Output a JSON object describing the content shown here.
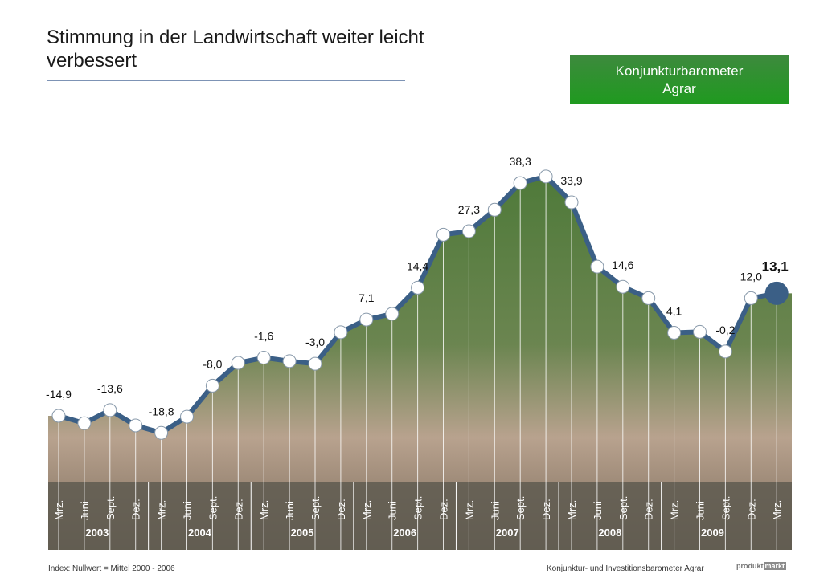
{
  "chart_data": {
    "type": "line",
    "title": "Stimmung in der Landwirtschaft weiter leicht verbessert",
    "badge": "Konjunkturbarometer Agrar",
    "footnote": "Index: Nullwert = Mittel 2000 - 2006",
    "source": "Konjunktur- und Investitionsbarometer Agrar",
    "logo": [
      "produkt",
      "markt"
    ],
    "categories": [
      "Mrz.",
      "Juni",
      "Sept.",
      "Dez.",
      "Mrz.",
      "Juni",
      "Sept.",
      "Dez.",
      "Mrz.",
      "Juni",
      "Sept.",
      "Dez.",
      "Mrz.",
      "Juni",
      "Sept.",
      "Dez.",
      "Mrz.",
      "Juni",
      "Sept.",
      "Dez.",
      "Mrz.",
      "Juni",
      "Sept.",
      "Dez.",
      "Mrz.",
      "Juni",
      "Sept.",
      "Dez.",
      "Mrz."
    ],
    "years": [
      "2003",
      "2004",
      "2005",
      "2006",
      "2007",
      "2008",
      "2009"
    ],
    "ylim": [
      -30,
      45
    ],
    "series": [
      {
        "name": "Konjunkturbarometer Agrar",
        "color": "#3b5f86",
        "values": [
          -14.9,
          -16.6,
          -13.6,
          -17.1,
          -18.8,
          -15.1,
          -8.0,
          -2.8,
          -1.6,
          -2.4,
          -3.0,
          4.2,
          7.1,
          8.4,
          14.4,
          26.5,
          27.3,
          32.2,
          38.3,
          39.8,
          33.9,
          19.2,
          14.6,
          12.0,
          4.1,
          4.3,
          -0.2,
          12.0,
          13.1
        ],
        "value_labels": [
          "-14,9",
          null,
          "-13,6",
          null,
          "-18,8",
          null,
          "-8,0",
          null,
          "-1,6",
          null,
          "-3,0",
          null,
          "7,1",
          null,
          "14,4",
          null,
          "27,3",
          null,
          "38,3",
          null,
          "33,9",
          null,
          "14,6",
          null,
          "4,1",
          null,
          "-0,2",
          "12,0",
          "13,1"
        ]
      }
    ]
  }
}
